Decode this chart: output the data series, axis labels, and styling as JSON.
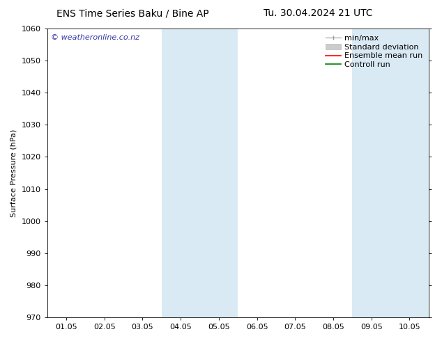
{
  "title_left": "ENS Time Series Baku / Bine AP",
  "title_right": "Tu. 30.04.2024 21 UTC",
  "ylabel": "Surface Pressure (hPa)",
  "ylim": [
    970,
    1060
  ],
  "yticks": [
    970,
    980,
    990,
    1000,
    1010,
    1020,
    1030,
    1040,
    1050,
    1060
  ],
  "xtick_labels": [
    "01.05",
    "02.05",
    "03.05",
    "04.05",
    "05.05",
    "06.05",
    "07.05",
    "08.05",
    "09.05",
    "10.05"
  ],
  "xtick_positions": [
    1,
    2,
    3,
    4,
    5,
    6,
    7,
    8,
    9,
    10
  ],
  "xlim": [
    0.5,
    10.5
  ],
  "shaded_regions": [
    {
      "xmin": 3.5,
      "xmax": 5.5,
      "color": "#daeaf5"
    },
    {
      "xmin": 8.5,
      "xmax": 10.5,
      "color": "#daeaf5"
    }
  ],
  "watermark_text": "© weatheronline.co.nz",
  "watermark_color": "#3333aa",
  "bg_color": "#ffffff",
  "plot_bg_color": "#ffffff",
  "title_fontsize": 10,
  "axis_fontsize": 8,
  "tick_fontsize": 8,
  "watermark_fontsize": 8,
  "legend_fontsize": 8
}
